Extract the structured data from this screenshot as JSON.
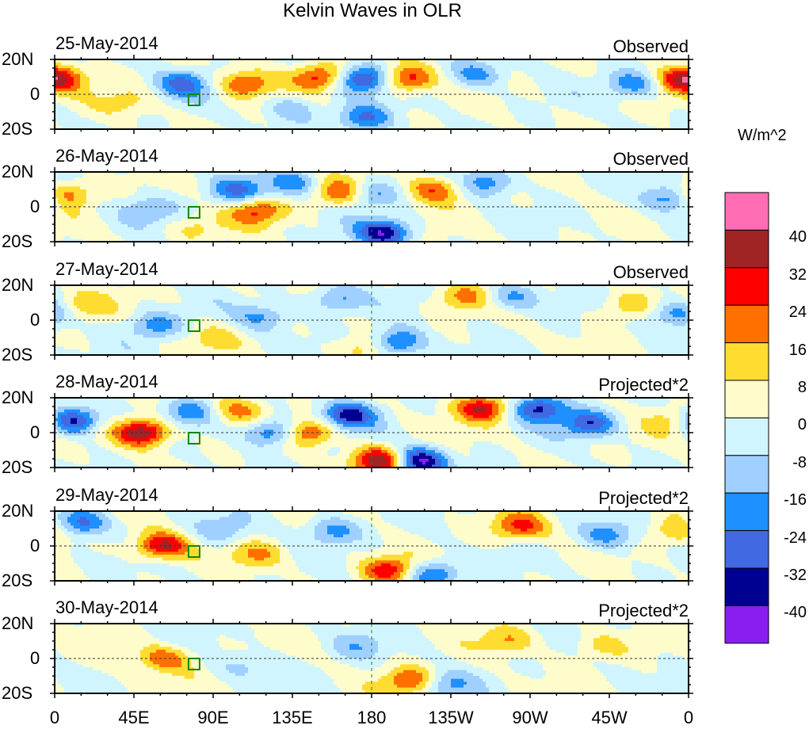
{
  "chart_data": {
    "type": "heatmap",
    "title": "Kelvin Waves in OLR",
    "units_label": "W/m^2",
    "x_ticks": [
      "0",
      "45E",
      "90E",
      "135E",
      "180",
      "135W",
      "90W",
      "45W",
      "0"
    ],
    "x_range_lon": [
      0,
      360
    ],
    "y_ticks": [
      "20N",
      "0",
      "20S"
    ],
    "y_range_lat": [
      20,
      -20
    ],
    "levels": [
      -40,
      -32,
      -24,
      -16,
      -8,
      0,
      8,
      16,
      24,
      32,
      40
    ],
    "colorbar_labels": [
      "40",
      "32",
      "24",
      "16",
      "8",
      "0",
      "-8",
      "-16",
      "-24",
      "-32",
      "-40"
    ],
    "colors": [
      "#8a1ef0",
      "#000091",
      "#4169e1",
      "#1e90ff",
      "#a0d0ff",
      "#d0f5ff",
      "#fffccc",
      "#ffdd30",
      "#ff7000",
      "#ff0000",
      "#a02424",
      "#ff6eb4"
    ],
    "panels": [
      {
        "date": "25-May-2014",
        "type": "Observed",
        "anomalies": [
          [
            151,
            10,
            28
          ],
          [
            175,
            9,
            -36
          ],
          [
            200,
            9,
            30
          ],
          [
            73,
            6,
            -25
          ],
          [
            108,
            6,
            25
          ],
          [
            239,
            11,
            -20
          ],
          [
            176,
            -14,
            -25
          ],
          [
            329,
            6,
            -22
          ],
          [
            356,
            9,
            20
          ],
          [
            3,
            9,
            20
          ],
          [
            135,
            -8,
            -15
          ],
          [
            40,
            -5,
            10
          ]
        ]
      },
      {
        "date": "26-May-2014",
        "type": "Observed",
        "anomalies": [
          [
            5,
            7,
            28
          ],
          [
            52,
            -2,
            -15
          ],
          [
            104,
            9,
            -25
          ],
          [
            115,
            -2,
            25
          ],
          [
            162,
            8,
            25
          ],
          [
            180,
            7,
            -20
          ],
          [
            187,
            -15,
            -38
          ],
          [
            216,
            10,
            25
          ],
          [
            246,
            14,
            -22
          ],
          [
            351,
            5,
            -28
          ],
          [
            135,
            13,
            -20
          ],
          [
            80,
            -12,
            12
          ]
        ]
      },
      {
        "date": "27-May-2014",
        "type": "Observed",
        "anomalies": [
          [
            14,
            8,
            15
          ],
          [
            57,
            -3,
            -20
          ],
          [
            118,
            2,
            -18
          ],
          [
            176,
            -16,
            15
          ],
          [
            194,
            -13,
            -32
          ],
          [
            232,
            13,
            18
          ],
          [
            259,
            13,
            -20
          ],
          [
            325,
            8,
            15
          ],
          [
            354,
            4,
            -25
          ],
          [
            160,
            12,
            -20
          ],
          [
            90,
            -10,
            10
          ]
        ]
      },
      {
        "date": "28-May-2014",
        "type": "Projected*2",
        "anomalies": [
          [
            9,
            7,
            -45
          ],
          [
            50,
            0,
            42
          ],
          [
            77,
            12,
            -20
          ],
          [
            104,
            13,
            18
          ],
          [
            124,
            0,
            -30
          ],
          [
            144,
            0,
            28
          ],
          [
            167,
            10,
            -35
          ],
          [
            185,
            -16,
            40
          ],
          [
            207,
            -16,
            -42
          ],
          [
            243,
            14,
            32
          ],
          [
            275,
            14,
            -35
          ],
          [
            304,
            5,
            -30
          ],
          [
            356,
            7,
            20
          ]
        ]
      },
      {
        "date": "29-May-2014",
        "type": "Projected*2",
        "anomalies": [
          [
            14,
            13,
            -30
          ],
          [
            61,
            0,
            35
          ],
          [
            95,
            9,
            -15
          ],
          [
            158,
            9,
            -20
          ],
          [
            190,
            -14,
            30
          ],
          [
            214,
            -16,
            -28
          ],
          [
            264,
            11,
            25
          ],
          [
            315,
            6,
            -20
          ],
          [
            356,
            9,
            20
          ],
          [
            115,
            -5,
            15
          ]
        ]
      },
      {
        "date": "30-May-2014",
        "type": "Projected*2",
        "anomalies": [
          [
            63,
            0,
            22
          ],
          [
            203,
            -13,
            25
          ],
          [
            221,
            -15,
            -18
          ],
          [
            257,
            10,
            15
          ],
          [
            172,
            7,
            -12
          ],
          [
            309,
            7,
            12
          ],
          [
            108,
            -4,
            -10
          ]
        ]
      }
    ]
  }
}
